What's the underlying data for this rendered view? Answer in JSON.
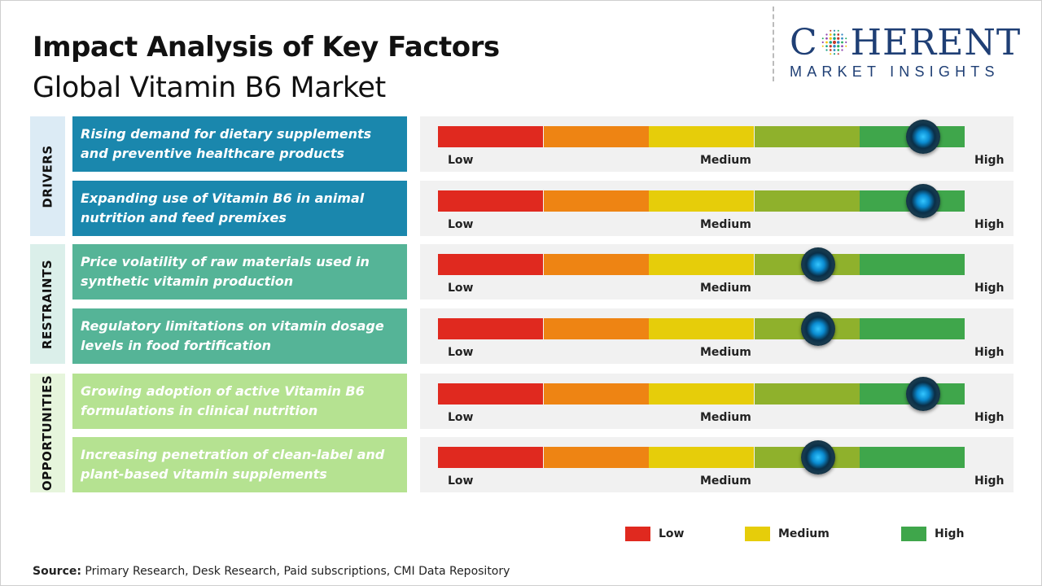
{
  "header": {
    "title": "Impact Analysis of Key Factors",
    "subtitle": "Global Vitamin B6 Market"
  },
  "logo": {
    "brand_pre": "C",
    "brand_post": "HERENT",
    "tagline": "MARKET INSIGHTS"
  },
  "categories": [
    {
      "label": "DRIVERS",
      "color": "#dcebf5"
    },
    {
      "label": "RESTRAINTS",
      "color": "#dbefea"
    },
    {
      "label": "OPPORTUNITIES",
      "color": "#e6f5dc"
    }
  ],
  "factors": [
    {
      "text": "Rising demand for dietary supplements and preventive healthcare products",
      "color": "#1a87ad",
      "impact_position": 0.92
    },
    {
      "text": "Expanding use of Vitamin B6 in animal nutrition and feed premixes",
      "color": "#1a87ad",
      "impact_position": 0.92
    },
    {
      "text": "Price volatility of raw materials used in synthetic vitamin production",
      "color": "#55b497",
      "impact_position": 0.72
    },
    {
      "text": "Regulatory limitations on vitamin dosage levels in food fortification",
      "color": "#55b497",
      "impact_position": 0.72
    },
    {
      "text": "Growing adoption of active Vitamin B6 formulations in clinical nutrition",
      "color": "#b5e291",
      "impact_position": 0.92
    },
    {
      "text": "Increasing penetration of clean-label and plant-based vitamin supplements",
      "color": "#b5e291",
      "impact_position": 0.72
    }
  ],
  "scale": {
    "low_label": "Low",
    "medium_label": "Medium",
    "high_label": "High",
    "segment_colors": [
      "#e0291f",
      "#ee8413",
      "#e6cd0a",
      "#8fb12c",
      "#3fa64b"
    ]
  },
  "legend": [
    {
      "label": "Low",
      "color": "#e0291f"
    },
    {
      "label": "Medium",
      "color": "#e6cd0a"
    },
    {
      "label": "High",
      "color": "#3fa64b"
    }
  ],
  "source": {
    "prefix": "Source:",
    "text": " Primary Research, Desk Research, Paid subscriptions, CMI Data Repository"
  }
}
